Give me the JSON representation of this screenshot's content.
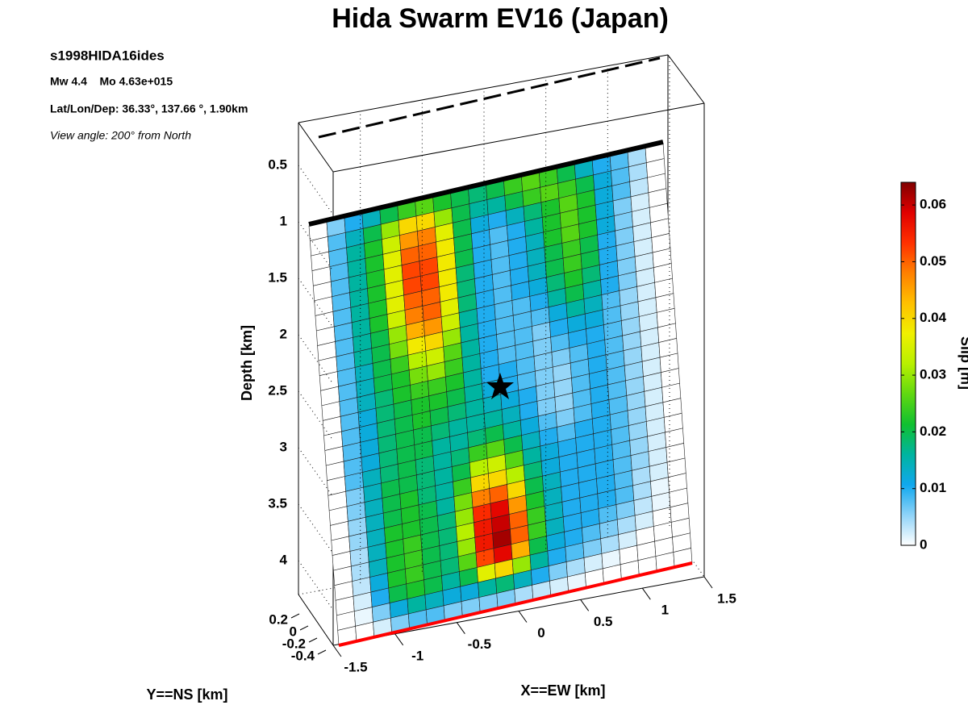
{
  "chart_data": {
    "type": "heatmap",
    "title": "Hida Swarm EV16 (Japan)",
    "annotations": [
      "s1998HIDA16ides",
      "Mw 4.4    Mo 4.63e+015",
      "Lat/Lon/Dep: 36.33°, 137.66 °, 1.90km",
      "View angle: 200° from North"
    ],
    "zlabel": "Depth [km]",
    "xlabel": "X==EW [km]",
    "ylabel": "Y==NS [km]",
    "colorbar_label": "Slip [m]",
    "zlim": [
      0.1,
      4.3
    ],
    "zticks": [
      0.5,
      1,
      1.5,
      2,
      2.5,
      3,
      3.5,
      4
    ],
    "xlim": [
      -1.5,
      1.5
    ],
    "xticks": [
      -1.5,
      -1,
      -0.5,
      0,
      0.5,
      1,
      1.5
    ],
    "ylim": [
      -0.4,
      0.2
    ],
    "yticks": [
      0.2,
      0,
      -0.2,
      -0.4
    ],
    "clim": [
      0,
      0.064
    ],
    "cticks": [
      0,
      0.01,
      0.02,
      0.03,
      0.04,
      0.05,
      0.06
    ],
    "colormap": [
      "#ffffff",
      "#8fd3f8",
      "#10a8ee",
      "#00b4a0",
      "#10c030",
      "#60d810",
      "#b8f000",
      "#f0f000",
      "#ffc000",
      "#ff8000",
      "#ff3000",
      "#e00000",
      "#800000"
    ],
    "values": [
      [
        0,
        0.006,
        0.01,
        0.014,
        0.02,
        0.024,
        0.026,
        0.022,
        0.02,
        0.018,
        0.02,
        0.024,
        0.026,
        0.024,
        0.02,
        0.014,
        0.01,
        0.008,
        0.004,
        0
      ],
      [
        0,
        0.008,
        0.014,
        0.02,
        0.03,
        0.04,
        0.04,
        0.03,
        0.02,
        0.016,
        0.016,
        0.02,
        0.024,
        0.026,
        0.024,
        0.02,
        0.012,
        0.008,
        0.004,
        0
      ],
      [
        0,
        0.008,
        0.016,
        0.022,
        0.034,
        0.046,
        0.048,
        0.036,
        0.02,
        0.012,
        0.01,
        0.014,
        0.018,
        0.022,
        0.026,
        0.022,
        0.012,
        0.008,
        0.003,
        0
      ],
      [
        0,
        0.008,
        0.016,
        0.022,
        0.036,
        0.05,
        0.05,
        0.038,
        0.02,
        0.01,
        0.008,
        0.01,
        0.016,
        0.022,
        0.026,
        0.022,
        0.012,
        0.006,
        0.002,
        0
      ],
      [
        0,
        0.008,
        0.016,
        0.022,
        0.036,
        0.052,
        0.052,
        0.038,
        0.02,
        0.01,
        0.008,
        0.01,
        0.014,
        0.022,
        0.026,
        0.022,
        0.012,
        0.006,
        0.002,
        0
      ],
      [
        0,
        0.008,
        0.016,
        0.022,
        0.036,
        0.052,
        0.052,
        0.038,
        0.018,
        0.01,
        0.008,
        0.01,
        0.014,
        0.02,
        0.024,
        0.02,
        0.01,
        0.006,
        0.002,
        0
      ],
      [
        0,
        0.008,
        0.016,
        0.022,
        0.036,
        0.05,
        0.05,
        0.038,
        0.018,
        0.01,
        0.008,
        0.01,
        0.014,
        0.02,
        0.024,
        0.02,
        0.01,
        0.006,
        0.002,
        0
      ],
      [
        0,
        0.008,
        0.016,
        0.022,
        0.034,
        0.048,
        0.05,
        0.036,
        0.018,
        0.01,
        0.008,
        0.01,
        0.012,
        0.018,
        0.022,
        0.018,
        0.01,
        0.006,
        0.002,
        0
      ],
      [
        0,
        0.008,
        0.016,
        0.02,
        0.03,
        0.044,
        0.046,
        0.034,
        0.016,
        0.01,
        0.008,
        0.008,
        0.01,
        0.016,
        0.02,
        0.016,
        0.01,
        0.006,
        0.002,
        0
      ],
      [
        0,
        0.008,
        0.016,
        0.02,
        0.028,
        0.038,
        0.04,
        0.03,
        0.016,
        0.01,
        0.008,
        0.008,
        0.008,
        0.012,
        0.016,
        0.014,
        0.008,
        0.005,
        0.002,
        0
      ],
      [
        0,
        0.008,
        0.014,
        0.02,
        0.024,
        0.032,
        0.034,
        0.026,
        0.016,
        0.01,
        0.008,
        0.008,
        0.006,
        0.01,
        0.012,
        0.012,
        0.008,
        0.005,
        0.002,
        0
      ],
      [
        0,
        0.008,
        0.014,
        0.02,
        0.022,
        0.028,
        0.03,
        0.024,
        0.016,
        0.01,
        0.008,
        0.008,
        0.006,
        0.008,
        0.01,
        0.01,
        0.008,
        0.005,
        0.002,
        0
      ],
      [
        0,
        0.008,
        0.014,
        0.018,
        0.022,
        0.024,
        0.024,
        0.022,
        0.016,
        0.01,
        0.01,
        0.008,
        0.006,
        0.006,
        0.008,
        0.01,
        0.008,
        0.005,
        0.002,
        0
      ],
      [
        0,
        0.008,
        0.012,
        0.018,
        0.02,
        0.022,
        0.022,
        0.02,
        0.016,
        0.012,
        0.01,
        0.008,
        0.006,
        0.005,
        0.008,
        0.01,
        0.008,
        0.005,
        0.002,
        0
      ],
      [
        0,
        0.008,
        0.012,
        0.018,
        0.02,
        0.022,
        0.02,
        0.018,
        0.016,
        0.014,
        0.012,
        0.01,
        0.006,
        0.005,
        0.008,
        0.01,
        0.008,
        0.005,
        0.002,
        0
      ],
      [
        0,
        0.008,
        0.012,
        0.018,
        0.02,
        0.02,
        0.018,
        0.016,
        0.016,
        0.016,
        0.014,
        0.01,
        0.006,
        0.005,
        0.008,
        0.01,
        0.008,
        0.005,
        0.002,
        0
      ],
      [
        0,
        0.008,
        0.012,
        0.018,
        0.02,
        0.02,
        0.016,
        0.016,
        0.018,
        0.02,
        0.016,
        0.012,
        0.008,
        0.006,
        0.008,
        0.01,
        0.008,
        0.005,
        0.002,
        0
      ],
      [
        0,
        0.008,
        0.014,
        0.018,
        0.02,
        0.018,
        0.016,
        0.018,
        0.024,
        0.026,
        0.02,
        0.014,
        0.01,
        0.008,
        0.01,
        0.01,
        0.008,
        0.005,
        0.002,
        0
      ],
      [
        0,
        0.006,
        0.014,
        0.02,
        0.02,
        0.018,
        0.016,
        0.02,
        0.032,
        0.034,
        0.026,
        0.016,
        0.012,
        0.01,
        0.01,
        0.01,
        0.008,
        0.005,
        0.002,
        0
      ],
      [
        0,
        0.006,
        0.014,
        0.02,
        0.022,
        0.018,
        0.016,
        0.024,
        0.04,
        0.04,
        0.032,
        0.018,
        0.012,
        0.01,
        0.01,
        0.01,
        0.008,
        0.005,
        0.002,
        0
      ],
      [
        0,
        0.005,
        0.014,
        0.02,
        0.022,
        0.02,
        0.016,
        0.028,
        0.048,
        0.05,
        0.04,
        0.02,
        0.014,
        0.01,
        0.01,
        0.01,
        0.008,
        0.005,
        0.002,
        0
      ],
      [
        0,
        0.005,
        0.014,
        0.022,
        0.022,
        0.02,
        0.018,
        0.03,
        0.054,
        0.058,
        0.046,
        0.022,
        0.014,
        0.01,
        0.01,
        0.01,
        0.008,
        0.004,
        0.002,
        0
      ],
      [
        0,
        0.004,
        0.014,
        0.022,
        0.024,
        0.02,
        0.018,
        0.032,
        0.056,
        0.06,
        0.05,
        0.024,
        0.014,
        0.01,
        0.01,
        0.01,
        0.008,
        0.004,
        0.001,
        0
      ],
      [
        0,
        0.004,
        0.014,
        0.022,
        0.024,
        0.02,
        0.018,
        0.03,
        0.056,
        0.062,
        0.05,
        0.024,
        0.014,
        0.01,
        0.01,
        0.008,
        0.006,
        0.003,
        0.001,
        0
      ],
      [
        0,
        0.003,
        0.012,
        0.022,
        0.024,
        0.02,
        0.018,
        0.026,
        0.052,
        0.058,
        0.044,
        0.02,
        0.012,
        0.01,
        0.008,
        0.006,
        0.004,
        0.002,
        0,
        0
      ],
      [
        0,
        0.002,
        0.01,
        0.02,
        0.022,
        0.02,
        0.016,
        0.02,
        0.036,
        0.04,
        0.03,
        0.016,
        0.01,
        0.008,
        0.006,
        0.004,
        0.002,
        0,
        0,
        0
      ],
      [
        0,
        0.001,
        0.006,
        0.012,
        0.016,
        0.014,
        0.012,
        0.012,
        0.016,
        0.018,
        0.014,
        0.01,
        0.006,
        0.004,
        0.002,
        0.001,
        0,
        0,
        0,
        0
      ],
      [
        0,
        0,
        0.002,
        0.006,
        0.008,
        0.008,
        0.006,
        0.006,
        0.006,
        0.006,
        0.004,
        0.003,
        0.002,
        0.001,
        0,
        0,
        0,
        0,
        0,
        0
      ]
    ]
  }
}
